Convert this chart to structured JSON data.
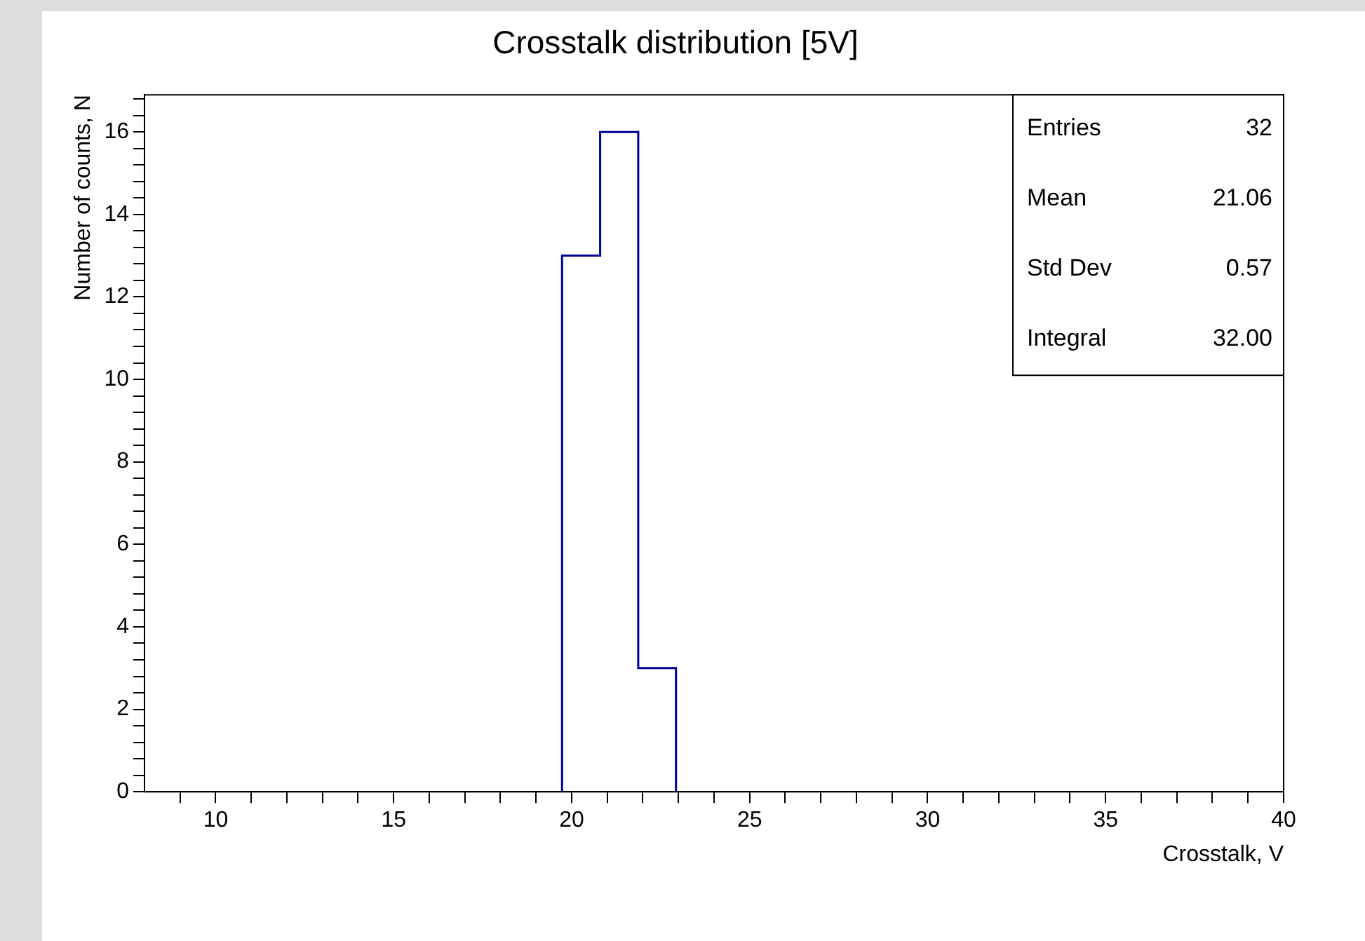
{
  "chart_data": {
    "type": "histogram",
    "title": "Crosstalk distribution [5V]",
    "xlabel": "Crosstalk, V",
    "ylabel": "Number of counts, N",
    "bins": [
      19.73,
      20.8,
      21.87,
      22.93
    ],
    "values": [
      13,
      16,
      3
    ],
    "color": "#000099",
    "xlim": [
      8,
      40
    ],
    "xticks": [
      {
        "value": 9,
        "label": null
      },
      10,
      {
        "value": 11,
        "label": null
      },
      {
        "value": 12,
        "label": null
      },
      {
        "value": 13,
        "label": null
      },
      {
        "value": 14,
        "label": null
      },
      15,
      {
        "value": 16,
        "label": null
      },
      {
        "value": 17,
        "label": null
      },
      {
        "value": 18,
        "label": null
      },
      {
        "value": 19,
        "label": null
      },
      20,
      {
        "value": 21,
        "label": null
      },
      {
        "value": 22,
        "label": null
      },
      {
        "value": 23,
        "label": null
      },
      {
        "value": 24,
        "label": null
      },
      25,
      {
        "value": 26,
        "label": null
      },
      {
        "value": 27,
        "label": null
      },
      {
        "value": 28,
        "label": null
      },
      {
        "value": 29,
        "label": null
      },
      30,
      {
        "value": 31,
        "label": null
      },
      {
        "value": 32,
        "label": null
      },
      {
        "value": 33,
        "label": null
      },
      {
        "value": 34,
        "label": null
      },
      35,
      {
        "value": 36,
        "label": null
      },
      {
        "value": 37,
        "label": null
      },
      {
        "value": 38,
        "label": null
      },
      {
        "value": 39,
        "label": null
      },
      40
    ],
    "ylim": [
      0,
      16.9
    ],
    "yticks": [
      0,
      {
        "value": 0.4,
        "label": null
      },
      {
        "value": 0.8,
        "label": null
      },
      {
        "value": 1.2,
        "label": null
      },
      {
        "value": 1.6,
        "label": null
      },
      2,
      {
        "value": 2.4,
        "label": null
      },
      {
        "value": 2.8,
        "label": null
      },
      {
        "value": 3.2,
        "label": null
      },
      {
        "value": 3.6,
        "label": null
      },
      4,
      {
        "value": 4.4,
        "label": null
      },
      {
        "value": 4.8,
        "label": null
      },
      {
        "value": 5.2,
        "label": null
      },
      {
        "value": 5.6,
        "label": null
      },
      6,
      {
        "value": 6.4,
        "label": null
      },
      {
        "value": 6.8,
        "label": null
      },
      {
        "value": 7.2,
        "label": null
      },
      {
        "value": 7.6,
        "label": null
      },
      8,
      {
        "value": 8.4,
        "label": null
      },
      {
        "value": 8.8,
        "label": null
      },
      {
        "value": 9.2,
        "label": null
      },
      {
        "value": 9.6,
        "label": null
      },
      10,
      {
        "value": 10.4,
        "label": null
      },
      {
        "value": 10.8,
        "label": null
      },
      {
        "value": 11.2,
        "label": null
      },
      {
        "value": 11.6,
        "label": null
      },
      12,
      {
        "value": 12.4,
        "label": null
      },
      {
        "value": 12.8,
        "label": null
      },
      {
        "value": 13.2,
        "label": null
      },
      {
        "value": 13.6,
        "label": null
      },
      14,
      {
        "value": 14.4,
        "label": null
      },
      {
        "value": 14.8,
        "label": null
      },
      {
        "value": 15.2,
        "label": null
      },
      {
        "value": 15.6,
        "label": null
      },
      16,
      {
        "value": 16.4,
        "label": null
      },
      {
        "value": 16.8,
        "label": null
      }
    ],
    "annotations": [
      "Entries",
      "32",
      "Mean",
      "21.06",
      "Std Dev",
      "0.57",
      "Integral",
      "32.00"
    ],
    "grid": false,
    "legend": false
  }
}
